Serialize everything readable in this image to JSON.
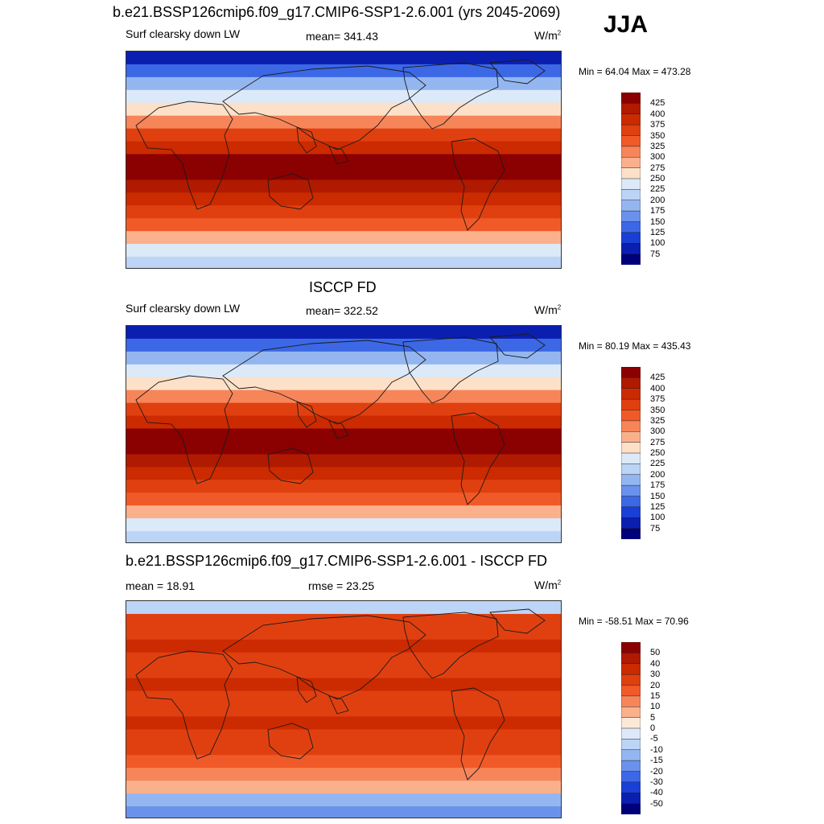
{
  "season": "JJA",
  "panels": [
    {
      "title": "b.e21.BSSP126cmip6.f09_g17.CMIP6-SSP1-2.6.001 (yrs 2045-2069)",
      "left_label": "Surf clearsky down LW",
      "center_label": "mean= 341.43",
      "units": "W/m",
      "units_sup": "2",
      "minmax": "Min =  64.04 Max = 473.28",
      "kind": "abs"
    },
    {
      "title": "ISCCP FD",
      "left_label": "Surf clearsky down LW",
      "center_label": "mean= 322.52",
      "units": "W/m",
      "units_sup": "2",
      "minmax": "Min =  80.19 Max = 435.43",
      "kind": "abs"
    },
    {
      "title": "b.e21.BSSP126cmip6.f09_g17.CMIP6-SSP1-2.6.001 - ISCCP FD",
      "left_label": "mean =  18.91",
      "center_label": "rmse =  23.25",
      "units": "W/m",
      "units_sup": "2",
      "minmax": "Min = -58.51 Max =  70.96",
      "kind": "diff"
    }
  ],
  "colorbars": {
    "abs": {
      "labels": [
        "425",
        "400",
        "375",
        "350",
        "325",
        "300",
        "275",
        "250",
        "225",
        "200",
        "175",
        "150",
        "125",
        "100",
        "75"
      ],
      "colors": [
        "#8b0000",
        "#b01a00",
        "#cc2a00",
        "#e04010",
        "#f05a28",
        "#f7855a",
        "#fbb08c",
        "#fde0c8",
        "#dce9f8",
        "#bcd4f5",
        "#94b6f0",
        "#6a92ec",
        "#3c68e6",
        "#1a3fd6",
        "#0a1fb0",
        "#00007a"
      ]
    },
    "diff": {
      "labels": [
        "50",
        "40",
        "30",
        "20",
        "15",
        "10",
        "5",
        "0",
        "-5",
        "-10",
        "-15",
        "-20",
        "-30",
        "-40",
        "-50"
      ],
      "colors": [
        "#8b0000",
        "#b01a00",
        "#cc2a00",
        "#e04010",
        "#f05a28",
        "#f7855a",
        "#fbb08c",
        "#fde8d8",
        "#dde8f8",
        "#bcd4f5",
        "#94b6f0",
        "#6a92ec",
        "#3c68e6",
        "#1a3fd6",
        "#0a1fb0",
        "#00007a"
      ]
    }
  },
  "colors": {
    "abs_lat_bands": [
      "#0a1fb0",
      "#3c68e6",
      "#94b6f0",
      "#dce9f8",
      "#fde0c8",
      "#f7855a",
      "#e04010",
      "#cc2a00",
      "#8b0000",
      "#8b0000",
      "#b01a00",
      "#cc2a00",
      "#e04010",
      "#f05a28",
      "#fbb08c",
      "#dce9f8",
      "#bcd4f5"
    ],
    "diff_lat_bands": [
      "#bcd4f5",
      "#e04010",
      "#e04010",
      "#cc2a00",
      "#e04010",
      "#e04010",
      "#cc2a00",
      "#e04010",
      "#e04010",
      "#cc2a00",
      "#e04010",
      "#e04010",
      "#f05a28",
      "#f7855a",
      "#fbb08c",
      "#94b6f0",
      "#6a92ec"
    ],
    "coast": "#1a1a1a"
  }
}
